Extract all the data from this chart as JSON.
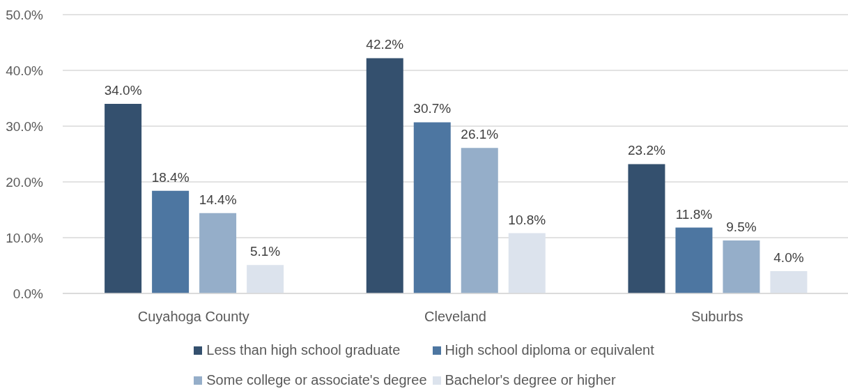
{
  "chart_data": {
    "type": "bar",
    "categories": [
      "Cuyahoga County",
      "Cleveland",
      "Suburbs"
    ],
    "series": [
      {
        "name": "Less than high school graduate",
        "color": "#34506e",
        "values": [
          34.0,
          42.2,
          23.2
        ],
        "value_labels": [
          "34.0%",
          "42.2%",
          "23.2%"
        ]
      },
      {
        "name": "High school diploma or equivalent",
        "color": "#4d76a1",
        "values": [
          18.4,
          30.7,
          11.8
        ],
        "value_labels": [
          "18.4%",
          "30.7%",
          "11.8%"
        ]
      },
      {
        "name": "Some college or associate's degree",
        "color": "#95aec9",
        "values": [
          14.4,
          26.1,
          9.5
        ],
        "value_labels": [
          "14.4%",
          "26.1%",
          "9.5%"
        ]
      },
      {
        "name": "Bachelor's degree or higher",
        "color": "#dce3ed",
        "values": [
          5.1,
          10.8,
          4.0
        ],
        "value_labels": [
          "5.1%",
          "10.8%",
          "4.0%"
        ]
      }
    ],
    "ylim": [
      0,
      50
    ],
    "yticks": [
      {
        "value": 0,
        "label": "0.0%"
      },
      {
        "value": 10,
        "label": "10.0%"
      },
      {
        "value": 20,
        "label": "20.0%"
      },
      {
        "value": 30,
        "label": "30.0%"
      },
      {
        "value": 40,
        "label": "40.0%"
      },
      {
        "value": 50,
        "label": "50.0%"
      }
    ],
    "grid": "y",
    "legend": "bottom"
  }
}
